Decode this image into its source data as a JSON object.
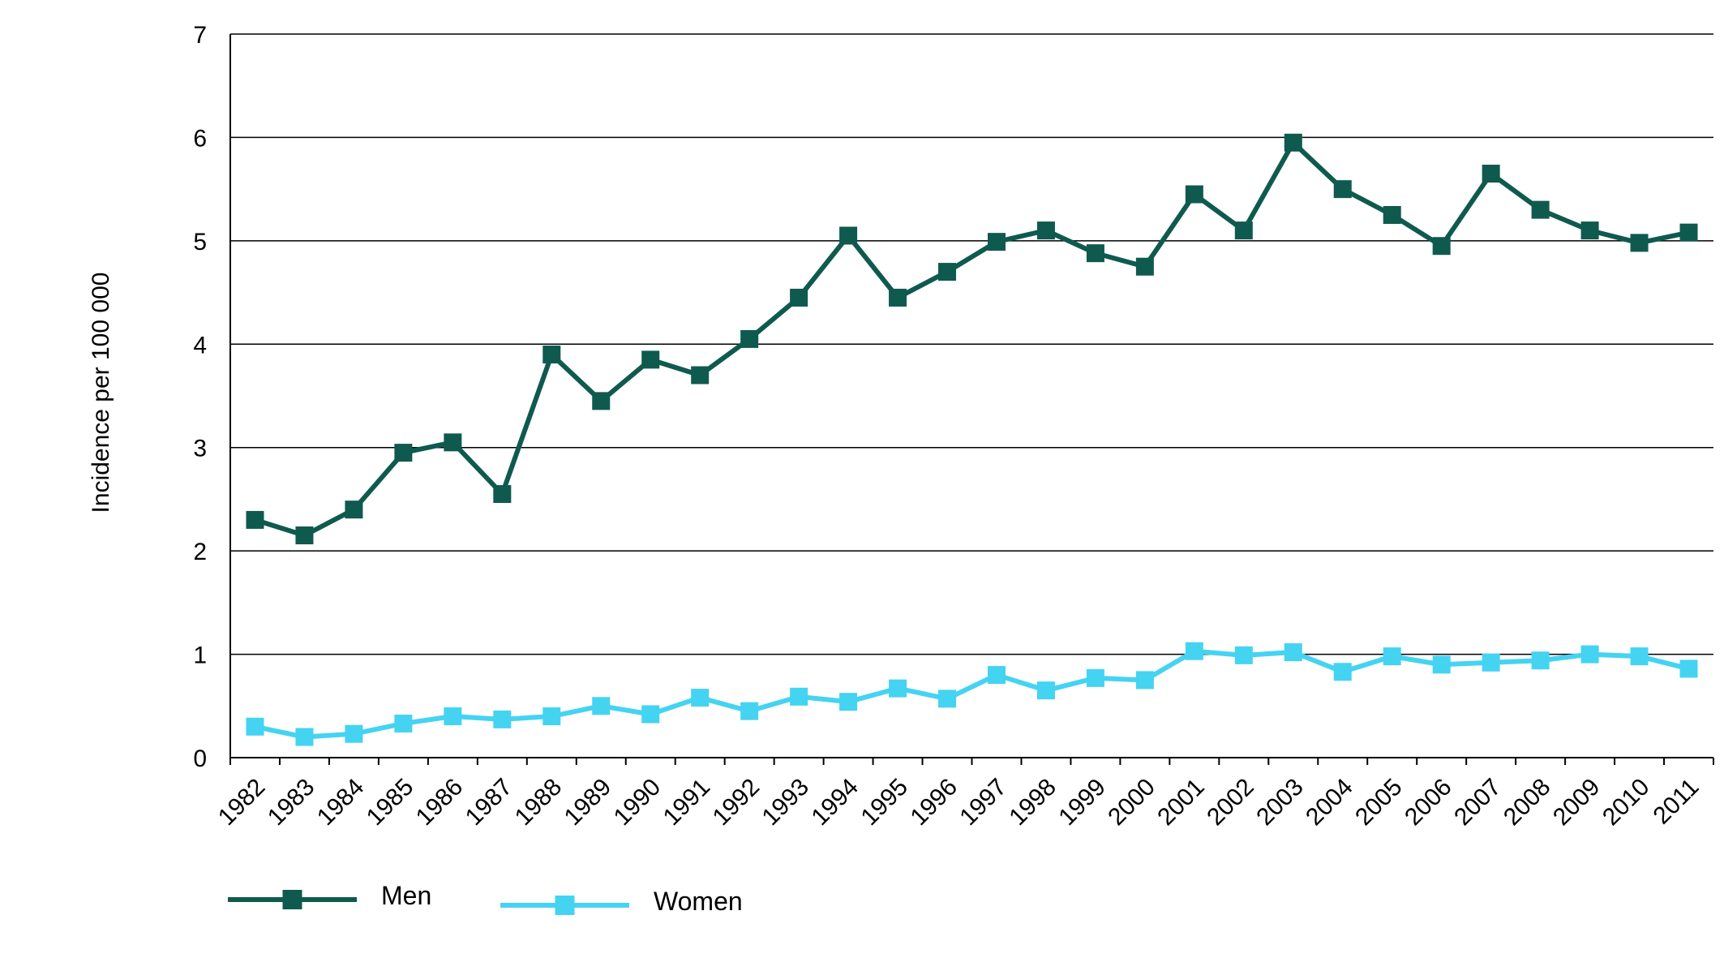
{
  "chart_data": {
    "type": "line",
    "title": "",
    "xlabel": "",
    "ylabel": "Incidence per 100 000",
    "ylim": [
      0,
      7
    ],
    "yticks": [
      0,
      1,
      2,
      3,
      4,
      5,
      6,
      7
    ],
    "grid": "horizontal",
    "legend_position": "bottom-left",
    "categories": [
      "1982",
      "1983",
      "1984",
      "1985",
      "1986",
      "1987",
      "1988",
      "1989",
      "1990",
      "1991",
      "1992",
      "1993",
      "1994",
      "1995",
      "1996",
      "1997",
      "1998",
      "1999",
      "2000",
      "2001",
      "2002",
      "2003",
      "2004",
      "2005",
      "2006",
      "2007",
      "2008",
      "2009",
      "2010",
      "2011"
    ],
    "series": [
      {
        "name": "Men",
        "color": "#0f5a4e",
        "values": [
          2.3,
          2.15,
          2.4,
          2.95,
          3.05,
          2.55,
          3.9,
          3.45,
          3.85,
          3.7,
          4.05,
          4.45,
          5.05,
          4.45,
          4.7,
          4.99,
          5.1,
          4.88,
          4.75,
          5.45,
          5.1,
          5.95,
          5.5,
          5.25,
          4.95,
          5.65,
          5.3,
          5.1,
          4.98,
          5.08
        ]
      },
      {
        "name": "Women",
        "color": "#45d3f2",
        "values": [
          0.3,
          0.2,
          0.23,
          0.33,
          0.4,
          0.37,
          0.4,
          0.5,
          0.42,
          0.58,
          0.45,
          0.59,
          0.54,
          0.67,
          0.57,
          0.8,
          0.65,
          0.77,
          0.75,
          1.03,
          0.99,
          1.02,
          0.83,
          0.98,
          0.9,
          0.92,
          0.94,
          1.0,
          0.98,
          0.86
        ]
      }
    ]
  }
}
